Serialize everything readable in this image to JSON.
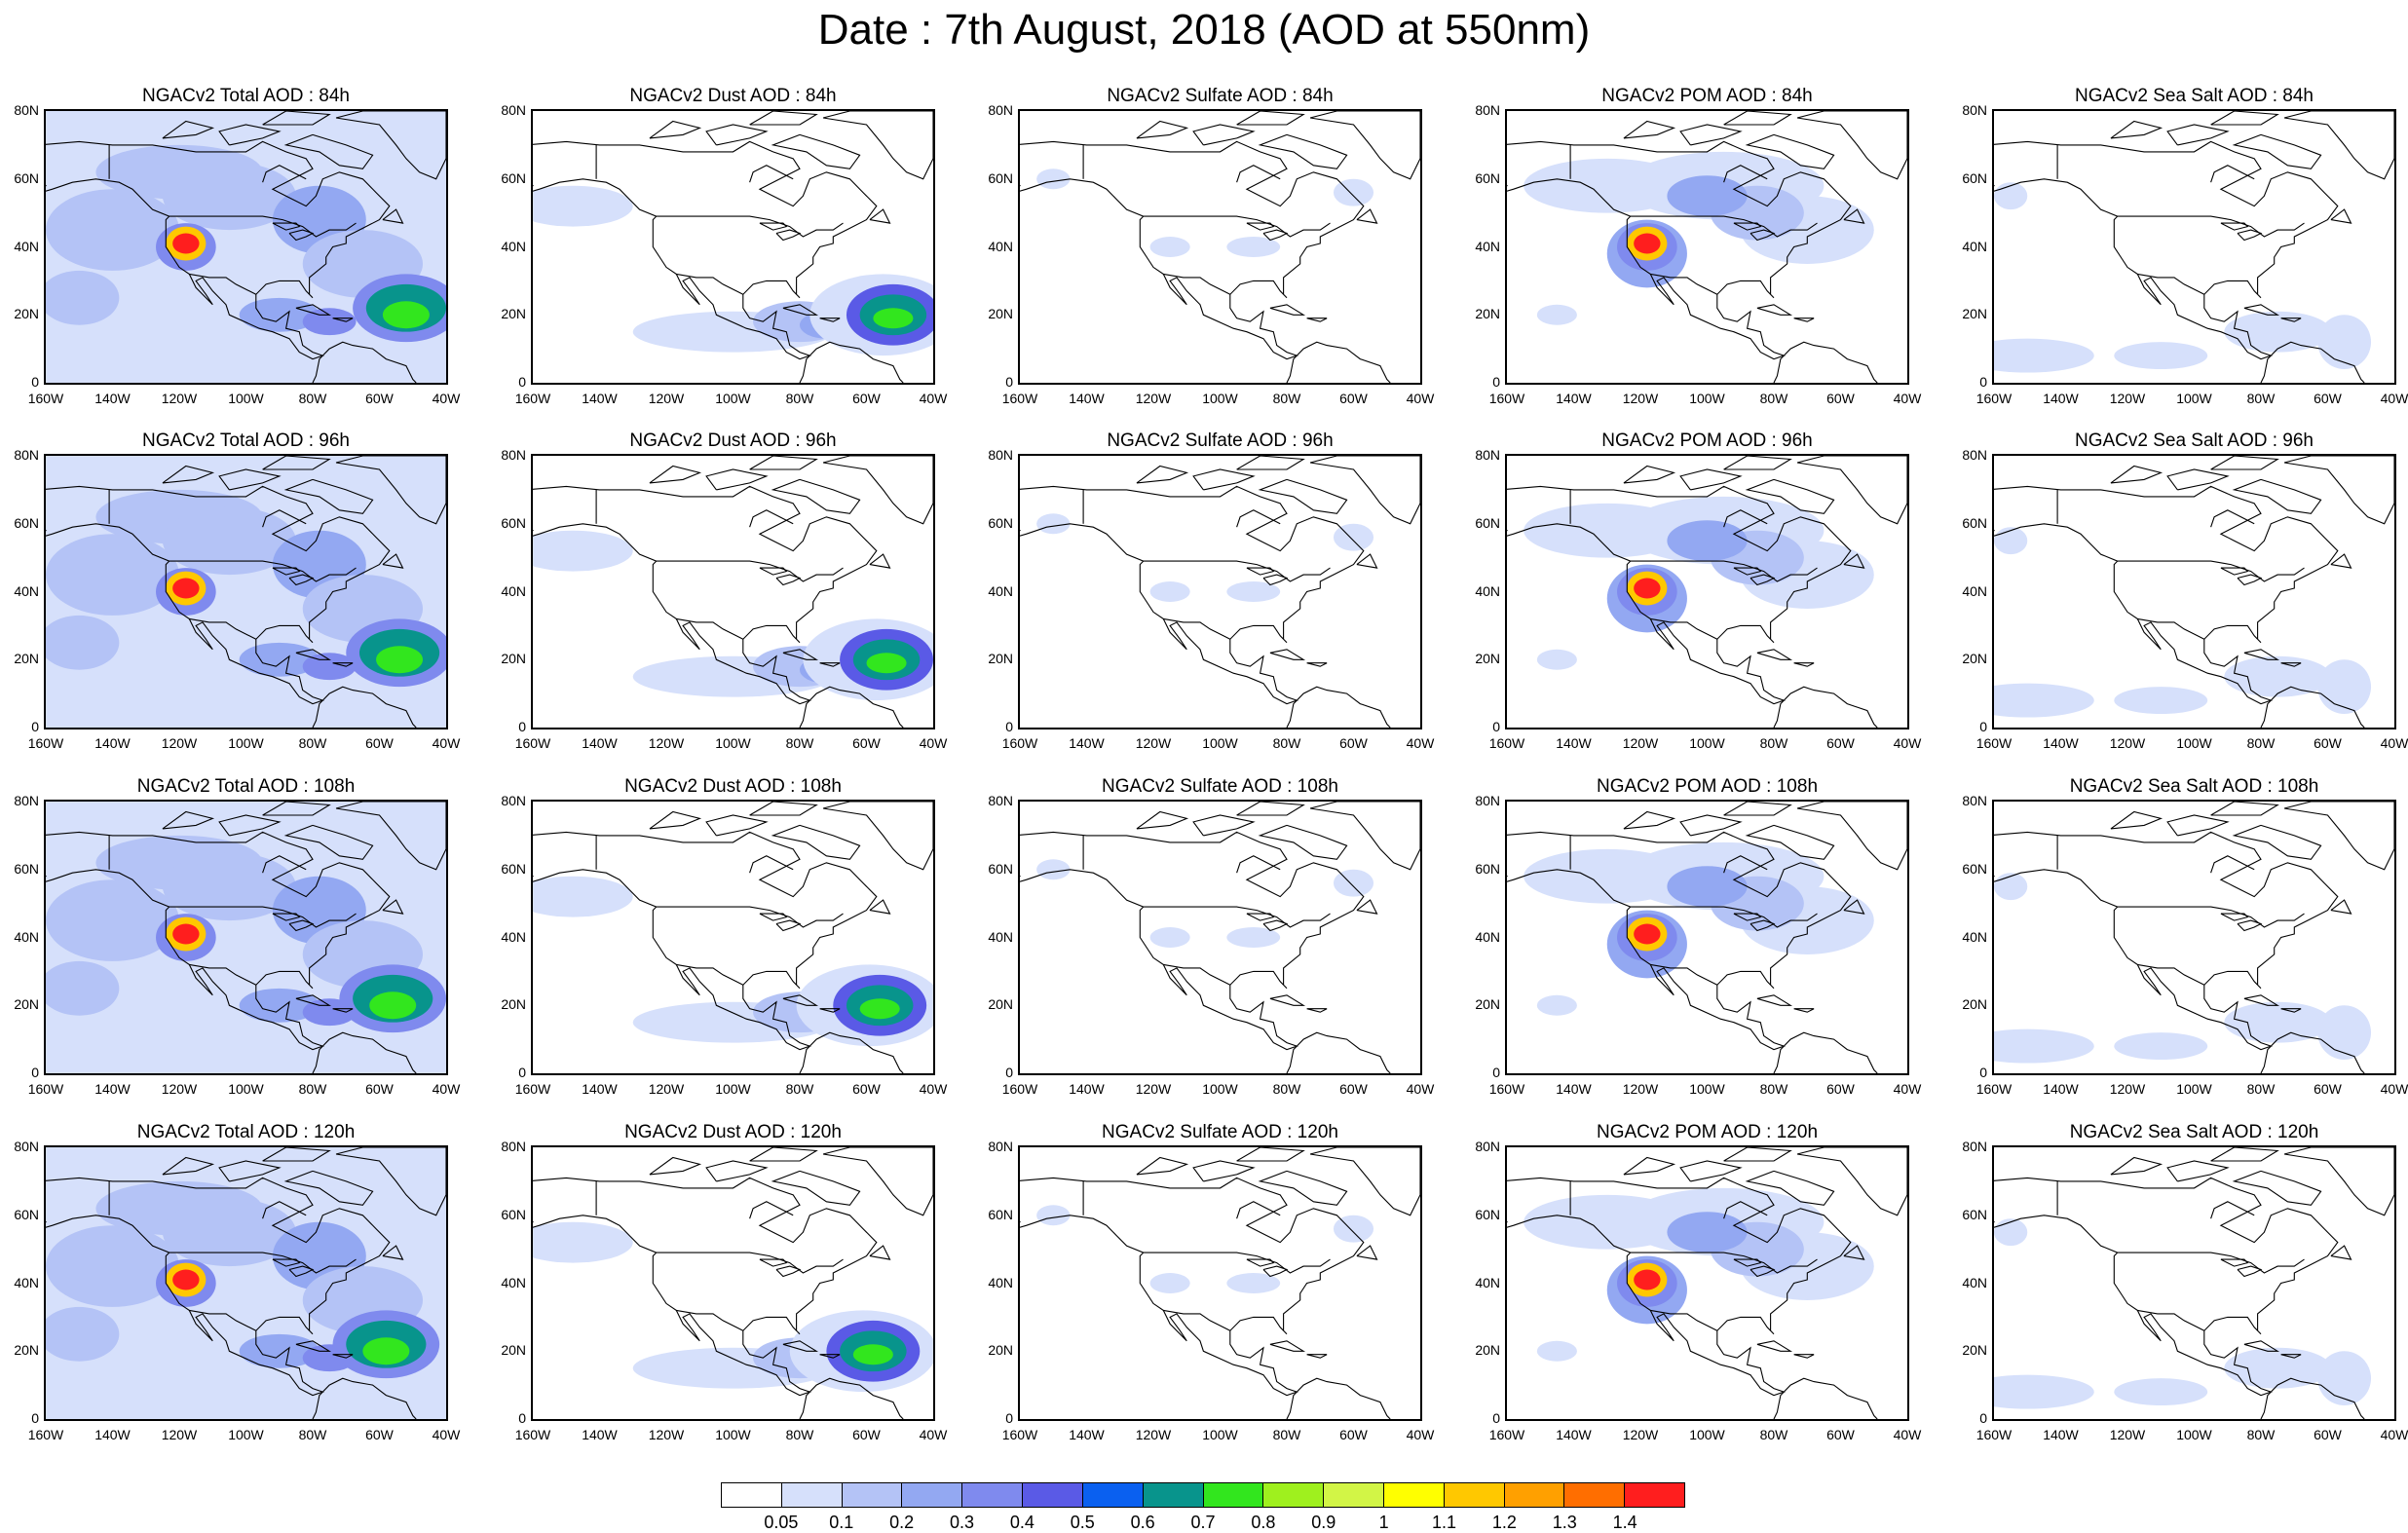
{
  "title": "Date : 7th August, 2018 (AOD at 550nm)",
  "rows": [
    [
      "NGACv2 Total AOD : 84h",
      "NGACv2 Dust AOD : 84h",
      "NGACv2 Sulfate AOD : 84h",
      "NGACv2 POM AOD : 84h",
      "NGACv2 Sea Salt AOD : 84h"
    ],
    [
      "NGACv2 Total AOD : 96h",
      "NGACv2 Dust AOD : 96h",
      "NGACv2 Sulfate AOD : 96h",
      "NGACv2 POM AOD : 96h",
      "NGACv2 Sea Salt AOD : 96h"
    ],
    [
      "NGACv2 Total AOD : 108h",
      "NGACv2 Dust AOD : 108h",
      "NGACv2 Sulfate AOD : 108h",
      "NGACv2 POM AOD : 108h",
      "NGACv2 Sea Salt AOD : 108h"
    ],
    [
      "NGACv2 Total AOD : 120h",
      "NGACv2 Dust AOD : 120h",
      "NGACv2 Sulfate AOD : 120h",
      "NGACv2 POM AOD : 120h",
      "NGACv2 Sea Salt  AOD : 120h"
    ]
  ],
  "lat_ticks": [
    "80N",
    "60N",
    "40N",
    "20N",
    "0"
  ],
  "lon_ticks": [
    "160W",
    "140W",
    "120W",
    "100W",
    "80W",
    "60W",
    "40W"
  ],
  "colorbar": {
    "labels": [
      "0.05",
      "0.1",
      "0.2",
      "0.3",
      "0.4",
      "0.5",
      "0.6",
      "0.7",
      "0.8",
      "0.9",
      "1",
      "1.1",
      "1.2",
      "1.3",
      "1.4"
    ],
    "colors": [
      "#ffffff",
      "#d6e0fb",
      "#b4c3f6",
      "#93a8f2",
      "#7f8aee",
      "#5a5ae6",
      "#0a60f0",
      "#08948c",
      "#32e61e",
      "#9ff01e",
      "#d2f546",
      "#ffff00",
      "#ffc800",
      "#ffa000",
      "#ff6e00",
      "#ff1e1e"
    ]
  },
  "chart_data": {
    "type": "heatmap",
    "variable": "AOD at 550nm",
    "date": "7th August, 2018",
    "lat_range": [
      "0",
      "80N"
    ],
    "lon_range": [
      "160W",
      "40W"
    ],
    "products": [
      "Total",
      "Dust",
      "Sulfate",
      "POM",
      "Sea Salt"
    ],
    "forecast_hours": [
      "84h",
      "96h",
      "108h",
      "120h"
    ]
  }
}
